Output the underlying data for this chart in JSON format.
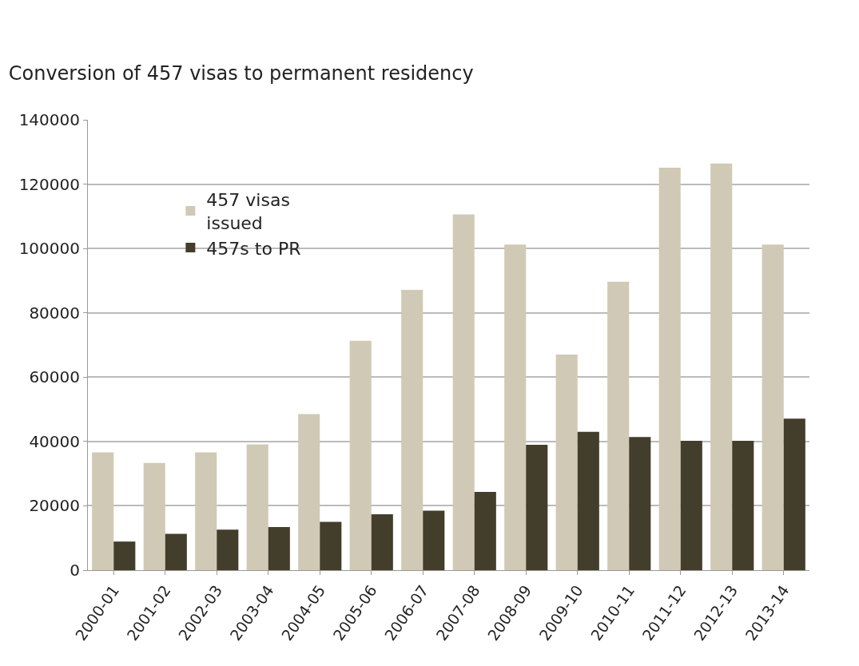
{
  "chart_data": {
    "type": "bar",
    "title": "Conversion of 457 visas to permanent residency",
    "categories": [
      "2000-01",
      "2001-02",
      "2002-03",
      "2003-04",
      "2004-05",
      "2005-06",
      "2006-07",
      "2007-08",
      "2008-09",
      "2009-10",
      "2010-11",
      "2011-12",
      "2012-13",
      "2013-14"
    ],
    "series": [
      {
        "name": "457 visas issued",
        "color": "#d0c9b5",
        "values": [
          36600,
          33300,
          36600,
          39100,
          48500,
          71300,
          87100,
          110600,
          101200,
          67000,
          89700,
          125100,
          126400,
          101200
        ]
      },
      {
        "name": "457s to PR",
        "color": "#433d2b",
        "values": [
          8900,
          11300,
          12600,
          13400,
          15000,
          17400,
          18500,
          24300,
          39000,
          43000,
          41400,
          40200,
          40200,
          47100
        ]
      }
    ],
    "ylim": [
      0,
      140000
    ],
    "yticks": [
      0,
      20000,
      40000,
      60000,
      80000,
      100000,
      120000,
      140000
    ],
    "grid": "y",
    "legend": "top left"
  }
}
